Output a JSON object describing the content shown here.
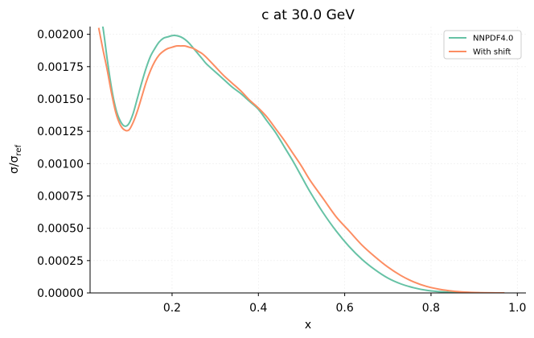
{
  "chart_data": {
    "type": "line",
    "title": "c at 30.0 GeV",
    "xlabel": "x",
    "ylabel_main": "σ/σ",
    "ylabel_sub": "ref",
    "xlim": [
      0.01,
      1.02
    ],
    "ylim": [
      0.0,
      0.00206
    ],
    "xticks": [
      0.2,
      0.4,
      0.6,
      0.8,
      1.0
    ],
    "xtick_labels": [
      "0.2",
      "0.4",
      "0.6",
      "0.8",
      "1.0"
    ],
    "yticks": [
      0.0,
      0.00025,
      0.0005,
      0.00075,
      0.001,
      0.00125,
      0.0015,
      0.00175,
      0.002
    ],
    "ytick_labels": [
      "0.00000",
      "0.00025",
      "0.00050",
      "0.00075",
      "0.00100",
      "0.00125",
      "0.00150",
      "0.00175",
      "0.00200"
    ],
    "grid": true,
    "legend_position": "top-right",
    "series": [
      {
        "name": "NNPDF4.0",
        "color": "#66c2a5",
        "x": [
          0.03,
          0.04,
          0.05,
          0.06,
          0.07,
          0.08,
          0.09,
          0.1,
          0.11,
          0.12,
          0.13,
          0.14,
          0.15,
          0.16,
          0.17,
          0.18,
          0.19,
          0.2,
          0.21,
          0.22,
          0.23,
          0.24,
          0.25,
          0.26,
          0.27,
          0.28,
          0.3,
          0.32,
          0.34,
          0.36,
          0.38,
          0.4,
          0.42,
          0.44,
          0.46,
          0.48,
          0.5,
          0.52,
          0.55,
          0.58,
          0.61,
          0.64,
          0.67,
          0.7,
          0.73,
          0.76,
          0.79,
          0.82,
          0.85,
          0.88,
          0.91,
          0.94,
          0.97
        ],
        "y": [
          0.00222,
          0.00205,
          0.0018,
          0.00158,
          0.00142,
          0.00133,
          0.00129,
          0.00131,
          0.00139,
          0.00151,
          0.00163,
          0.00174,
          0.00183,
          0.00189,
          0.00194,
          0.00197,
          0.00198,
          0.00199,
          0.00199,
          0.00198,
          0.00196,
          0.00193,
          0.00189,
          0.00185,
          0.00181,
          0.00177,
          0.00171,
          0.00165,
          0.00159,
          0.00154,
          0.00148,
          0.00142,
          0.00133,
          0.00124,
          0.00113,
          0.00102,
          0.0009,
          0.00078,
          0.00062,
          0.00048,
          0.00036,
          0.00026,
          0.00018,
          0.000115,
          7e-05,
          4e-05,
          2e-05,
          1e-05,
          4e-06,
          1.5e-06,
          5e-07,
          1e-07,
          0.0
        ]
      },
      {
        "name": "With shift",
        "color": "#fc8d62",
        "x": [
          0.03,
          0.04,
          0.05,
          0.06,
          0.07,
          0.08,
          0.09,
          0.1,
          0.11,
          0.12,
          0.13,
          0.14,
          0.15,
          0.16,
          0.17,
          0.18,
          0.19,
          0.2,
          0.21,
          0.22,
          0.23,
          0.24,
          0.25,
          0.26,
          0.27,
          0.28,
          0.3,
          0.32,
          0.34,
          0.36,
          0.38,
          0.4,
          0.42,
          0.44,
          0.46,
          0.48,
          0.5,
          0.52,
          0.55,
          0.58,
          0.61,
          0.64,
          0.67,
          0.7,
          0.73,
          0.76,
          0.79,
          0.82,
          0.85,
          0.88,
          0.91,
          0.94,
          0.97
        ],
        "y": [
          0.00205,
          0.00188,
          0.00172,
          0.00154,
          0.00139,
          0.0013,
          0.00126,
          0.00126,
          0.00132,
          0.00141,
          0.00152,
          0.00163,
          0.00172,
          0.00179,
          0.00184,
          0.00187,
          0.00189,
          0.0019,
          0.00191,
          0.00191,
          0.00191,
          0.0019,
          0.00189,
          0.00187,
          0.00185,
          0.00182,
          0.00175,
          0.00168,
          0.00162,
          0.00156,
          0.00149,
          0.00143,
          0.00136,
          0.00127,
          0.00118,
          0.00108,
          0.00098,
          0.00087,
          0.00073,
          0.00059,
          0.00048,
          0.00037,
          0.00028,
          0.0002,
          0.000135,
          8.5e-05,
          5e-05,
          2.8e-05,
          1.4e-05,
          6e-06,
          2e-06,
          5e-07,
          0.0
        ]
      }
    ]
  }
}
